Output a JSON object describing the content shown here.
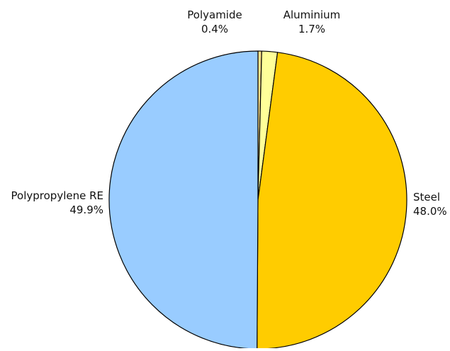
{
  "chart_data": {
    "type": "pie",
    "title": "",
    "slices": [
      {
        "label": "Polyamide",
        "pct_label": "0.4%",
        "value": 0.4,
        "color": "#FFE28A"
      },
      {
        "label": "Aluminium",
        "pct_label": "1.7%",
        "value": 1.7,
        "color": "#FFFF99"
      },
      {
        "label": "Steel",
        "pct_label": "48.0%",
        "value": 48.0,
        "color": "#FFCC00"
      },
      {
        "label": "Polypropylene RE",
        "pct_label": "49.9%",
        "value": 49.9,
        "color": "#99CCFF"
      }
    ],
    "start_angle": "12 o'clock",
    "direction": "clockwise",
    "outline_color": "#000000",
    "legend": "none"
  }
}
